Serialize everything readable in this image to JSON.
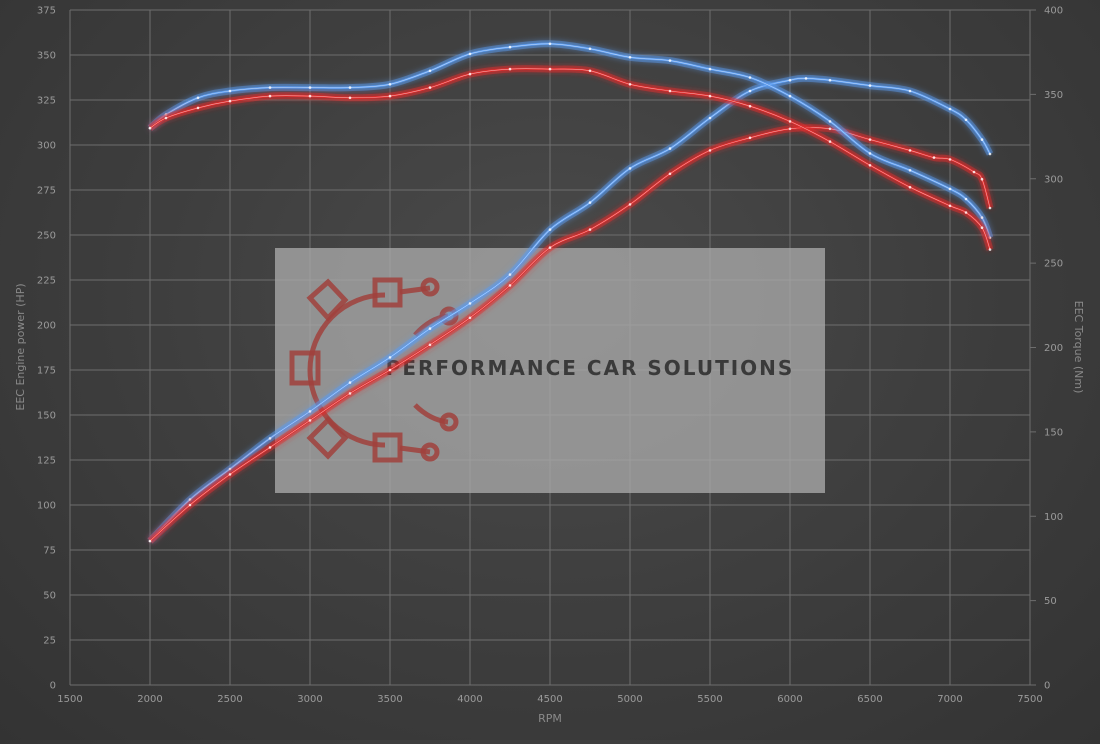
{
  "chart_data": {
    "type": "line",
    "xlabel": "RPM",
    "ylabel": "EEC Engine power (HP)",
    "y2label": "EEC Torque (Nm)",
    "xlim": [
      1500,
      7500
    ],
    "ylim": [
      0,
      375
    ],
    "y2lim": [
      0,
      400
    ],
    "x_ticks": [
      1500,
      2000,
      2500,
      3000,
      3500,
      4000,
      4500,
      5000,
      5500,
      6000,
      6500,
      7000,
      7500
    ],
    "y_ticks": [
      0,
      25,
      50,
      75,
      100,
      125,
      150,
      175,
      200,
      225,
      250,
      275,
      300,
      325,
      350,
      375
    ],
    "y2_ticks": [
      0,
      50,
      100,
      150,
      200,
      250,
      300,
      350,
      400
    ],
    "grid": true,
    "watermark": "PERFORMANCE CAR SOLUTIONS",
    "colors": {
      "tuned": "#5a9bf0",
      "stock": "#e02a2a"
    },
    "series": [
      {
        "axis": "power",
        "variant": "tuned",
        "x": [
          2000,
          2250,
          2500,
          2750,
          3000,
          3250,
          3500,
          3750,
          4000,
          4250,
          4500,
          4750,
          5000,
          5250,
          5500,
          5750,
          6000,
          6100,
          6250,
          6500,
          6750,
          7000,
          7100,
          7200,
          7250
        ],
        "y": [
          80,
          103,
          120,
          137,
          152,
          168,
          182,
          198,
          212,
          228,
          253,
          268,
          287,
          298,
          315,
          330,
          336,
          337,
          336,
          333,
          330,
          320,
          314,
          303,
          295
        ]
      },
      {
        "axis": "power",
        "variant": "stock",
        "x": [
          2000,
          2250,
          2500,
          2750,
          3000,
          3250,
          3500,
          3750,
          4000,
          4250,
          4500,
          4750,
          5000,
          5250,
          5500,
          5750,
          6000,
          6250,
          6500,
          6750,
          6900,
          7000,
          7150,
          7200,
          7250
        ],
        "y": [
          80,
          100,
          117,
          132,
          147,
          162,
          175,
          189,
          204,
          222,
          243,
          253,
          267,
          284,
          297,
          304,
          309,
          309,
          303,
          297,
          293,
          292,
          285,
          281,
          265
        ]
      },
      {
        "axis": "torque",
        "variant": "tuned",
        "x": [
          2000,
          2100,
          2300,
          2500,
          2750,
          3000,
          3250,
          3500,
          3750,
          4000,
          4250,
          4500,
          4750,
          5000,
          5250,
          5500,
          5750,
          6000,
          6250,
          6500,
          6750,
          7000,
          7100,
          7200,
          7250
        ],
        "y": [
          330,
          338,
          348,
          352,
          354,
          354,
          354,
          356,
          364,
          374,
          378,
          380,
          377,
          372,
          370,
          365,
          360,
          349,
          334,
          315,
          305,
          294,
          288,
          277,
          265
        ]
      },
      {
        "axis": "torque",
        "variant": "stock",
        "x": [
          2000,
          2100,
          2300,
          2500,
          2750,
          3000,
          3250,
          3500,
          3750,
          4000,
          4250,
          4500,
          4750,
          5000,
          5250,
          5500,
          5750,
          6000,
          6250,
          6500,
          6750,
          7000,
          7100,
          7200,
          7250
        ],
        "y": [
          330,
          336,
          342,
          346,
          349,
          349,
          348,
          349,
          354,
          362,
          365,
          365,
          364,
          356,
          352,
          349,
          343,
          334,
          322,
          308,
          295,
          284,
          280,
          271,
          258
        ]
      }
    ]
  }
}
